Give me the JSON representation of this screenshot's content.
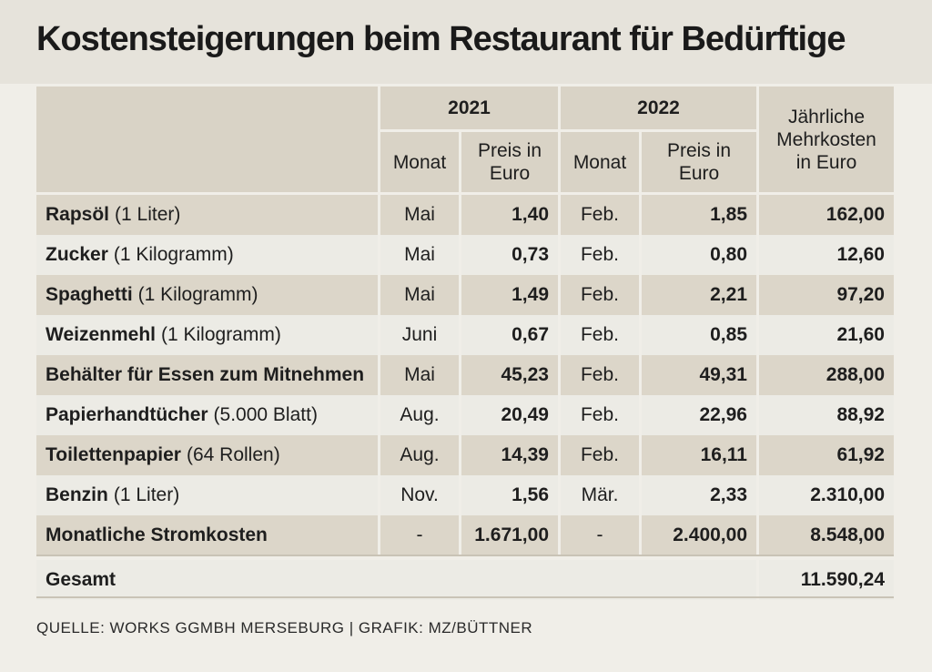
{
  "title": "Kostensteigerungen beim Restaurant für Bedürftige",
  "source": "QUELLE: WORKS GGMBH MERSEBURG | GRAFIK: MZ/BÜTTNER",
  "colors": {
    "header_bg": "#d9d3c6",
    "row_shaded": "#dcd6c9",
    "row_plain": "#ecebe5",
    "title_band": "#e6e3db"
  },
  "chart_data": {
    "type": "table",
    "headers": {
      "year_2021": "2021",
      "year_2022": "2022",
      "monat": "Monat",
      "preis": "Preis in Euro",
      "preis_line1": "Preis in",
      "preis_line2": "Euro",
      "mehrkosten_line1": "Jährliche",
      "mehrkosten_line2": "Mehrkosten",
      "mehrkosten_line3": "in Euro"
    },
    "rows": [
      {
        "item": "Rapsöl",
        "unit": "(1 Liter)",
        "month_2021": "Mai",
        "price_2021": "1,40",
        "month_2022": "Feb.",
        "price_2022": "1,85",
        "extra": "162,00"
      },
      {
        "item": "Zucker",
        "unit": "(1 Kilogramm)",
        "month_2021": "Mai",
        "price_2021": "0,73",
        "month_2022": "Feb.",
        "price_2022": "0,80",
        "extra": "12,60"
      },
      {
        "item": "Spaghetti",
        "unit": "(1 Kilogramm)",
        "month_2021": "Mai",
        "price_2021": "1,49",
        "month_2022": "Feb.",
        "price_2022": "2,21",
        "extra": "97,20"
      },
      {
        "item": "Weizenmehl",
        "unit": "(1 Kilogramm)",
        "month_2021": "Juni",
        "price_2021": "0,67",
        "month_2022": "Feb.",
        "price_2022": "0,85",
        "extra": "21,60"
      },
      {
        "item": "Behälter für Essen zum Mitnehmen",
        "unit": "",
        "month_2021": "Mai",
        "price_2021": "45,23",
        "month_2022": "Feb.",
        "price_2022": "49,31",
        "extra": "288,00"
      },
      {
        "item": "Papierhandtücher",
        "unit": "(5.000 Blatt)",
        "month_2021": "Aug.",
        "price_2021": "20,49",
        "month_2022": "Feb.",
        "price_2022": "22,96",
        "extra": "88,92"
      },
      {
        "item": "Toilettenpapier",
        "unit": "(64 Rollen)",
        "month_2021": "Aug.",
        "price_2021": "14,39",
        "month_2022": "Feb.",
        "price_2022": "16,11",
        "extra": "61,92"
      },
      {
        "item": "Benzin",
        "unit": "(1 Liter)",
        "month_2021": "Nov.",
        "price_2021": "1,56",
        "month_2022": "Mär.",
        "price_2022": "2,33",
        "extra": "2.310,00"
      },
      {
        "item": "Monatliche Stromkosten",
        "unit": "",
        "month_2021": "-",
        "price_2021": "1.671,00",
        "month_2022": "-",
        "price_2022": "2.400,00",
        "extra": "8.548,00"
      }
    ],
    "total": {
      "label": "Gesamt",
      "value": "11.590,24"
    }
  }
}
